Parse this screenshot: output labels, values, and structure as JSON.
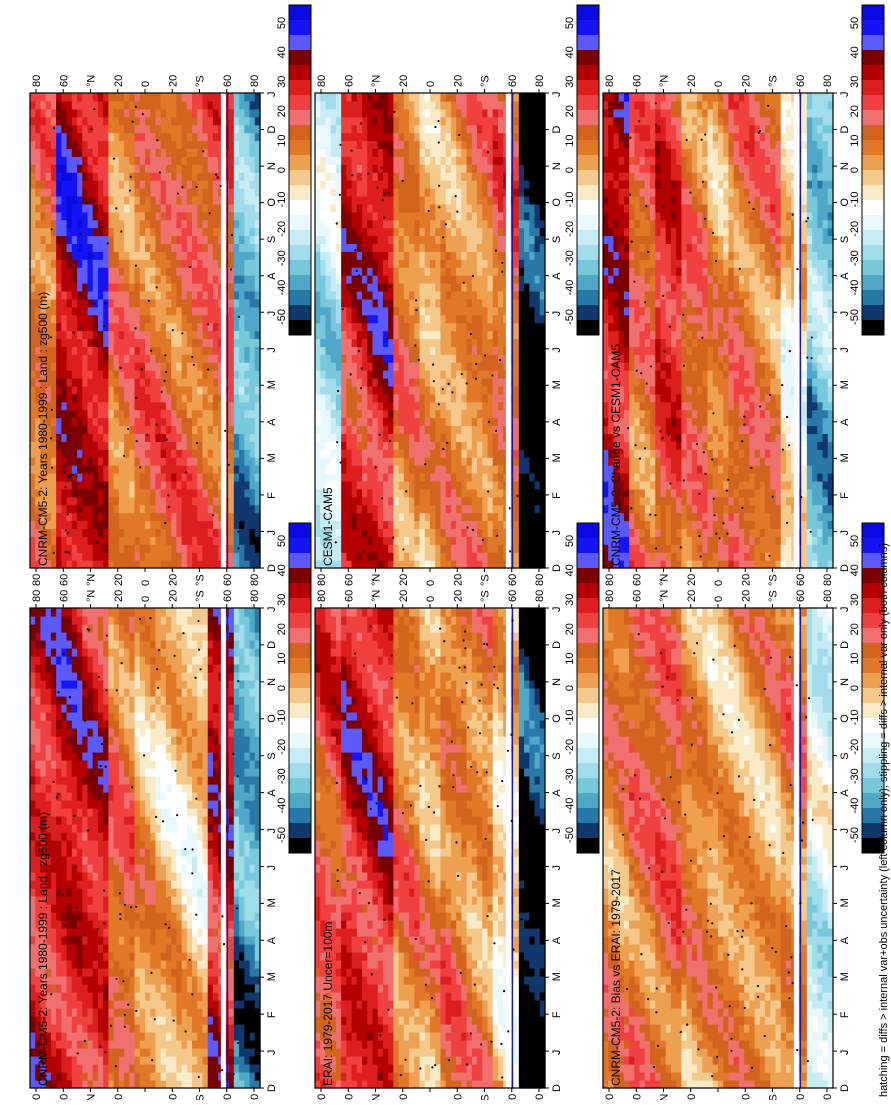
{
  "figure": {
    "caption": "hatching = diffs > internal var+obs uncertainty (left column only); stippling = diffs > internal var only (both columns)"
  },
  "chart_data": [
    {
      "type": "heatmap",
      "id": "p1",
      "title": "CNRM-CM5-2: Years 1980-1999 : Land : zg500 (m)",
      "months": [
        "D",
        "J",
        "F",
        "M",
        "A",
        "M",
        "J",
        "J",
        "A",
        "S",
        "O",
        "N",
        "D",
        "J"
      ],
      "lat_labels": [
        "80",
        "60",
        "°N",
        "20",
        "0",
        "20",
        "°S",
        "60",
        "80"
      ],
      "colorbar": {
        "labels": [
          "50",
          "40",
          "30",
          "20",
          "10",
          "0",
          "-10",
          "-20",
          "-30",
          "-40",
          "-50"
        ]
      },
      "seed": 1,
      "bands": [
        25,
        28,
        25,
        11,
        3,
        -1,
        -3,
        28,
        -35
      ]
    },
    {
      "type": "heatmap",
      "id": "p2",
      "title": "CNRM-CM5-2: Years 1980-1999 : Land : zg500 (m)",
      "months": [
        "D",
        "J",
        "F",
        "M",
        "A",
        "M",
        "J",
        "J",
        "A",
        "S",
        "O",
        "N",
        "D",
        "J"
      ],
      "lat_labels": [
        "80",
        "60",
        "°N",
        "20",
        "0",
        "20",
        "°S",
        "60",
        "80"
      ],
      "colorbar": {
        "labels": [
          "50",
          "40",
          "30",
          "20",
          "10",
          "0",
          "-10",
          "-20",
          "-30",
          "-40",
          "-50"
        ]
      },
      "seed": 2,
      "bands": [
        10,
        32,
        30,
        8,
        12,
        13,
        14,
        15,
        -32
      ]
    },
    {
      "type": "heatmap",
      "id": "p3",
      "title": "ERAI: 1979-2017 Uncer=100m",
      "months": [
        "D",
        "J",
        "F",
        "M",
        "A",
        "M",
        "J",
        "J",
        "A",
        "S",
        "O",
        "N",
        "D",
        "J"
      ],
      "lat_labels": [
        "80",
        "60",
        "°N",
        "20",
        "0",
        "20",
        "°S",
        "60",
        "80"
      ],
      "colorbar": {
        "labels": [
          "50",
          "40",
          "30",
          "20",
          "10",
          "0",
          "-10",
          "-20",
          "-30",
          "-40",
          "-50"
        ]
      },
      "seed": 3,
      "bands": [
        18,
        26,
        26,
        8,
        3,
        10,
        6,
        -4,
        -48
      ]
    },
    {
      "type": "heatmap",
      "id": "p4",
      "title": "CESM1-CAM5",
      "months": [
        "D",
        "J",
        "F",
        "M",
        "A",
        "M",
        "J",
        "J",
        "A",
        "S",
        "O",
        "N",
        "D",
        "J"
      ],
      "lat_labels": [
        "80",
        "60",
        "°N",
        "20",
        "0",
        "20",
        "°S",
        "60",
        "80"
      ],
      "colorbar": {
        "labels": [
          "50",
          "40",
          "30",
          "20",
          "10",
          "0",
          "-10",
          "-20",
          "-30",
          "-40",
          "-50"
        ]
      },
      "seed": 4,
      "bands": [
        -20,
        25,
        28,
        8,
        2,
        5,
        8,
        13,
        -50
      ]
    },
    {
      "type": "heatmap",
      "id": "p5",
      "title": "CNRM-CM5-2: Bias vs ERAI: 1979-2017",
      "months": [
        "D",
        "J",
        "F",
        "M",
        "A",
        "M",
        "J",
        "J",
        "A",
        "S",
        "O",
        "N",
        "D",
        "J"
      ],
      "lat_labels": [
        "80",
        "60",
        "°N",
        "20",
        "0",
        "20",
        "°S",
        "60",
        "80"
      ],
      "colorbar": {
        "labels": [
          "50",
          "40",
          "30",
          "20",
          "10",
          "0",
          "-10",
          "-20",
          "-30",
          "-40",
          "-50"
        ]
      },
      "seed": 5,
      "bands": [
        8,
        12,
        14,
        6,
        3,
        4,
        4,
        8,
        -18
      ]
    },
    {
      "type": "heatmap",
      "id": "p6",
      "title": "CNRM-CM5-2: Change vs CESM1-CAM5",
      "months": [
        "D",
        "J",
        "F",
        "M",
        "A",
        "M",
        "J",
        "J",
        "A",
        "S",
        "O",
        "N",
        "D",
        "J"
      ],
      "lat_labels": [
        "80",
        "60",
        "°N",
        "20",
        "0",
        "20",
        "°S",
        "60",
        "80"
      ],
      "colorbar": {
        "labels": [
          "50",
          "40",
          "30",
          "20",
          "10",
          "0",
          "-10",
          "-20",
          "-30",
          "-40",
          "-50"
        ]
      },
      "seed": 6,
      "bands": [
        30,
        12,
        22,
        12,
        6,
        12,
        10,
        -6,
        -30
      ]
    }
  ]
}
